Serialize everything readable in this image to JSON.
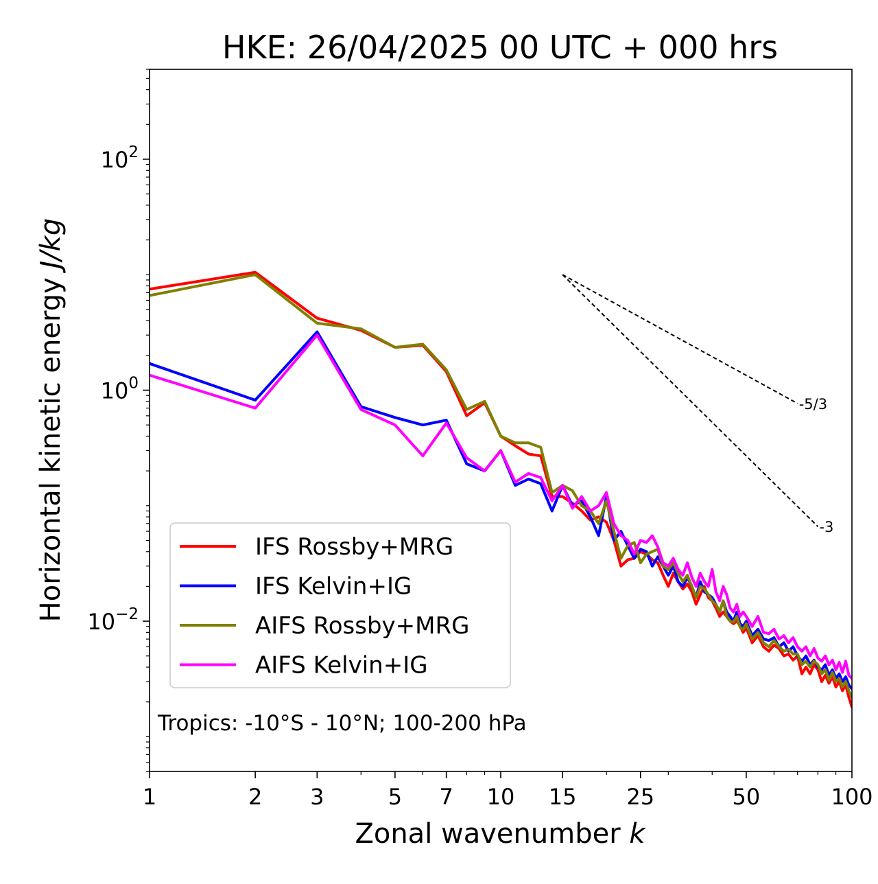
{
  "chart_data": {
    "type": "line",
    "title": "HKE: 26/04/2025 00 UTC + 000 hrs",
    "xlabel": "Zonal wavenumber ",
    "xlabel_var": "k",
    "ylabel": "Horizontal kinetic energy ",
    "ylabel_unit": "J/kg",
    "xscale": "log",
    "yscale": "log",
    "xlim": [
      1,
      100
    ],
    "ylim": [
      0.0005,
      600
    ],
    "xticks": [
      1,
      2,
      3,
      5,
      7,
      10,
      15,
      25,
      50,
      100
    ],
    "xtick_labels": [
      "1",
      "2",
      "3",
      "5",
      "7",
      "10",
      "15",
      "25",
      "50",
      "100"
    ],
    "yticks": [
      0.01,
      1,
      100
    ],
    "ytick_base": "10",
    "ytick_exponents": [
      "−2",
      "0",
      "2"
    ],
    "grid": false,
    "legend_position": "lower-left",
    "annotation": "Tropics: -10°S - 10°N; 100-200 hPa",
    "reference_slopes": [
      {
        "label": "-5/3",
        "slope": -1.6667,
        "x0": 15,
        "y0": 10,
        "x1": 70
      },
      {
        "label": "-3",
        "slope": -3,
        "x0": 15,
        "y0": 10,
        "x1": 80
      }
    ],
    "series": [
      {
        "name": "IFS Rossby+MRG",
        "color": "#ff0000",
        "x": [
          1,
          2,
          3,
          4,
          5,
          6,
          7,
          8,
          9,
          10,
          11,
          12,
          13,
          14,
          15,
          16,
          17,
          18,
          19,
          20,
          21,
          22,
          23,
          24,
          25,
          26,
          27,
          28,
          29,
          30,
          31,
          32,
          33,
          34,
          35,
          36,
          37,
          38,
          39,
          40,
          41,
          42,
          43,
          44,
          45,
          46,
          47,
          48,
          49,
          50,
          52,
          54,
          56,
          58,
          60,
          62,
          64,
          66,
          68,
          70,
          72,
          74,
          76,
          78,
          80,
          82,
          84,
          86,
          88,
          90,
          92,
          94,
          96,
          98,
          100
        ],
        "values": [
          7.5,
          10.5,
          4.2,
          3.3,
          2.35,
          2.45,
          1.45,
          0.6,
          0.78,
          0.4,
          0.33,
          0.28,
          0.27,
          0.12,
          0.12,
          0.105,
          0.09,
          0.075,
          0.08,
          0.072,
          0.05,
          0.03,
          0.034,
          0.035,
          0.04,
          0.038,
          0.034,
          0.032,
          0.025,
          0.02,
          0.026,
          0.022,
          0.019,
          0.021,
          0.018,
          0.014,
          0.017,
          0.02,
          0.016,
          0.015,
          0.013,
          0.011,
          0.012,
          0.011,
          0.01,
          0.0095,
          0.01,
          0.0092,
          0.008,
          0.0088,
          0.0065,
          0.0075,
          0.006,
          0.0055,
          0.0062,
          0.0058,
          0.005,
          0.0052,
          0.0046,
          0.005,
          0.0035,
          0.004,
          0.0035,
          0.0042,
          0.0038,
          0.003,
          0.0034,
          0.0029,
          0.0033,
          0.0027,
          0.003,
          0.0025,
          0.0028,
          0.0022,
          0.0018
        ]
      },
      {
        "name": "IFS Kelvin+IG",
        "color": "#0000ff",
        "x": [
          1,
          2,
          3,
          4,
          5,
          6,
          7,
          8,
          9,
          10,
          11,
          12,
          13,
          14,
          15,
          16,
          17,
          18,
          19,
          20,
          21,
          22,
          23,
          24,
          25,
          26,
          27,
          28,
          29,
          30,
          31,
          32,
          33,
          34,
          35,
          36,
          37,
          38,
          39,
          40,
          41,
          42,
          43,
          44,
          45,
          46,
          47,
          48,
          49,
          50,
          52,
          54,
          56,
          58,
          60,
          62,
          64,
          66,
          68,
          70,
          72,
          74,
          76,
          78,
          80,
          82,
          84,
          86,
          88,
          90,
          92,
          94,
          96,
          98,
          100
        ],
        "values": [
          1.7,
          0.82,
          3.2,
          0.72,
          0.58,
          0.5,
          0.55,
          0.23,
          0.2,
          0.3,
          0.15,
          0.17,
          0.155,
          0.09,
          0.15,
          0.1,
          0.11,
          0.08,
          0.055,
          0.12,
          0.05,
          0.06,
          0.045,
          0.035,
          0.042,
          0.04,
          0.03,
          0.036,
          0.03,
          0.025,
          0.03,
          0.022,
          0.02,
          0.024,
          0.02,
          0.016,
          0.022,
          0.018,
          0.017,
          0.016,
          0.014,
          0.012,
          0.015,
          0.012,
          0.011,
          0.01,
          0.012,
          0.0095,
          0.009,
          0.01,
          0.0075,
          0.0085,
          0.007,
          0.0068,
          0.0072,
          0.006,
          0.0065,
          0.0055,
          0.006,
          0.005,
          0.0045,
          0.005,
          0.0042,
          0.0046,
          0.004,
          0.0038,
          0.0042,
          0.0034,
          0.0038,
          0.0032,
          0.0035,
          0.003,
          0.0033,
          0.0028,
          0.0026
        ]
      },
      {
        "name": "AIFS Rossby+MRG",
        "color": "#808000",
        "x": [
          1,
          2,
          3,
          4,
          5,
          6,
          7,
          8,
          9,
          10,
          11,
          12,
          13,
          14,
          15,
          16,
          17,
          18,
          19,
          20,
          21,
          22,
          23,
          24,
          25,
          26,
          27,
          28,
          29,
          30,
          31,
          32,
          33,
          34,
          35,
          36,
          37,
          38,
          39,
          40,
          41,
          42,
          43,
          44,
          45,
          46,
          47,
          48,
          49,
          50,
          52,
          54,
          56,
          58,
          60,
          62,
          64,
          66,
          68,
          70,
          72,
          74,
          76,
          78,
          80,
          82,
          84,
          86,
          88,
          90,
          92,
          94,
          96,
          98,
          100
        ],
        "values": [
          6.6,
          10.0,
          3.8,
          3.4,
          2.35,
          2.5,
          1.5,
          0.68,
          0.8,
          0.4,
          0.35,
          0.35,
          0.32,
          0.13,
          0.15,
          0.135,
          0.1,
          0.09,
          0.07,
          0.11,
          0.06,
          0.035,
          0.045,
          0.048,
          0.032,
          0.038,
          0.04,
          0.042,
          0.03,
          0.028,
          0.032,
          0.026,
          0.022,
          0.025,
          0.02,
          0.016,
          0.02,
          0.019,
          0.017,
          0.015,
          0.014,
          0.012,
          0.015,
          0.011,
          0.01,
          0.0098,
          0.011,
          0.0089,
          0.0085,
          0.0095,
          0.007,
          0.008,
          0.0065,
          0.006,
          0.0068,
          0.006,
          0.0055,
          0.0057,
          0.0052,
          0.0052,
          0.0042,
          0.0045,
          0.004,
          0.0045,
          0.0042,
          0.0035,
          0.0038,
          0.0031,
          0.0036,
          0.003,
          0.0032,
          0.0027,
          0.003,
          0.0025,
          0.0022
        ]
      },
      {
        "name": "AIFS Kelvin+IG",
        "color": "#ff00ff",
        "x": [
          1,
          2,
          3,
          4,
          5,
          6,
          7,
          8,
          9,
          10,
          11,
          12,
          13,
          14,
          15,
          16,
          17,
          18,
          19,
          20,
          21,
          22,
          23,
          24,
          25,
          26,
          27,
          28,
          29,
          30,
          31,
          32,
          33,
          34,
          35,
          36,
          37,
          38,
          39,
          40,
          41,
          42,
          43,
          44,
          45,
          46,
          47,
          48,
          49,
          50,
          52,
          54,
          56,
          58,
          60,
          62,
          64,
          66,
          68,
          70,
          72,
          74,
          76,
          78,
          80,
          82,
          84,
          86,
          88,
          90,
          92,
          94,
          96,
          98,
          100
        ],
        "values": [
          1.35,
          0.7,
          3.0,
          0.68,
          0.5,
          0.27,
          0.52,
          0.26,
          0.2,
          0.3,
          0.16,
          0.19,
          0.175,
          0.11,
          0.15,
          0.095,
          0.12,
          0.09,
          0.1,
          0.13,
          0.07,
          0.055,
          0.05,
          0.038,
          0.05,
          0.048,
          0.055,
          0.044,
          0.032,
          0.03,
          0.035,
          0.028,
          0.025,
          0.032,
          0.024,
          0.02,
          0.026,
          0.022,
          0.02,
          0.028,
          0.018,
          0.015,
          0.02,
          0.017,
          0.013,
          0.012,
          0.014,
          0.011,
          0.012,
          0.011,
          0.009,
          0.011,
          0.008,
          0.0078,
          0.0085,
          0.007,
          0.0075,
          0.0065,
          0.0072,
          0.006,
          0.0055,
          0.006,
          0.005,
          0.0058,
          0.0048,
          0.0045,
          0.005,
          0.0042,
          0.0046,
          0.0038,
          0.0044,
          0.0036,
          0.0045,
          0.0034,
          0.0032
        ]
      }
    ]
  }
}
